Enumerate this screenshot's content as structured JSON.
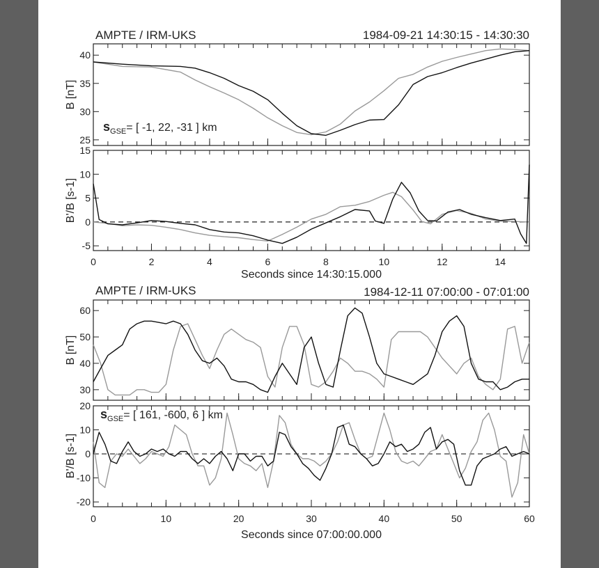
{
  "chart_data": [
    {
      "type": "line",
      "title_left": "AMPTE / IRM-UKS",
      "title_right": "1984-09-21 14:30:15 - 14:30:30",
      "xlabel": "Seconds since 14:30:15.000",
      "xlim": [
        0,
        15
      ],
      "xticks": [
        "0",
        "2",
        "4",
        "6",
        "8",
        "10",
        "12",
        "14"
      ],
      "panels": [
        {
          "ylabel": "B  [nT]",
          "ylim": [
            24,
            42
          ],
          "yticks": [
            "25",
            "30",
            "35",
            "40"
          ],
          "annotation": {
            "main": "s",
            "sub": "GSE",
            "text": "= [ -1, 22, -31 ] km"
          },
          "series": [
            {
              "color": "#111111",
              "x": [
                0,
                1,
                2,
                3,
                3.5,
                4,
                4.5,
                5,
                5.5,
                6,
                6.5,
                7,
                7.5,
                8,
                8.5,
                9,
                9.5,
                10,
                10.5,
                11,
                11.5,
                12,
                12.5,
                13,
                13.5,
                14,
                14.5,
                15
              ],
              "y": [
                38.8,
                38.4,
                38.1,
                38.0,
                37.7,
                36.9,
                35.9,
                34.6,
                33.6,
                32.1,
                29.7,
                27.5,
                26.1,
                25.8,
                26.7,
                27.7,
                28.5,
                28.6,
                31.2,
                34.8,
                36.2,
                36.9,
                37.8,
                38.6,
                39.3,
                40.0,
                40.6,
                40.8
              ]
            },
            {
              "color": "#999999",
              "x": [
                0,
                1,
                2,
                3,
                3.5,
                4,
                4.5,
                5,
                5.5,
                6,
                6.5,
                7,
                7.5,
                8,
                8.5,
                9,
                9.5,
                10,
                10.5,
                11,
                11.5,
                12,
                12.5,
                13,
                13.5,
                14,
                14.5,
                15
              ],
              "y": [
                38.8,
                38.0,
                37.9,
                37.0,
                35.6,
                34.4,
                33.3,
                32.1,
                30.6,
                28.9,
                27.5,
                26.3,
                25.9,
                26.4,
                27.8,
                30.1,
                31.7,
                33.7,
                35.9,
                36.6,
                37.9,
                38.9,
                39.6,
                40.2,
                40.8,
                41.1,
                41.0,
                40.8
              ]
            }
          ]
        },
        {
          "ylabel": "B'/B  [s-1]",
          "ylim": [
            -6,
            15
          ],
          "yticks": [
            "-5",
            "0",
            "5",
            "10",
            "15"
          ],
          "series": [
            {
              "color": "#111111",
              "x": [
                0,
                0.2,
                0.5,
                1,
                1.5,
                2,
                2.5,
                3,
                3.5,
                4,
                4.5,
                5,
                5.5,
                6,
                6.5,
                7,
                7.5,
                8,
                8.5,
                9,
                9.5,
                9.7,
                10,
                10.3,
                10.6,
                10.9,
                11.2,
                11.5,
                11.8,
                12.2,
                12.6,
                13,
                13.5,
                14,
                14.5,
                14.7,
                14.9,
                15
              ],
              "y": [
                8,
                0.5,
                -0.4,
                -0.6,
                -0.2,
                0.3,
                0.1,
                -0.3,
                -0.6,
                -1.6,
                -2.1,
                -2.3,
                -2.9,
                -3.8,
                -4.5,
                -3.2,
                -1.5,
                -0.2,
                1.1,
                2.6,
                2.3,
                0.2,
                -0.3,
                4.8,
                8.3,
                6.1,
                2.3,
                0.3,
                0.2,
                2.1,
                2.6,
                1.6,
                0.9,
                0.3,
                0.6,
                -2.5,
                -4.5,
                12
              ]
            },
            {
              "color": "#999999",
              "x": [
                0,
                0.5,
                1,
                1.5,
                2,
                2.5,
                3,
                3.5,
                4,
                4.5,
                5,
                5.5,
                6,
                6.5,
                7,
                7.5,
                8,
                8.5,
                9,
                9.5,
                10,
                10.3,
                10.6,
                11,
                11.3,
                11.6,
                12,
                12.5,
                13,
                13.5,
                14,
                14.5,
                15
              ],
              "y": [
                0,
                -0.3,
                -0.8,
                -0.6,
                -0.7,
                -1.1,
                -1.6,
                -2.3,
                -2.8,
                -3.1,
                -3.3,
                -3.7,
                -4.0,
                -2.6,
                -1.1,
                0.6,
                1.6,
                3.2,
                3.5,
                4.3,
                5.6,
                6.2,
                5.3,
                2.5,
                0.1,
                -0.4,
                1.6,
                2.4,
                1.8,
                0.6,
                0.2,
                0.1,
                0
              ]
            }
          ]
        }
      ]
    },
    {
      "type": "line",
      "title_left": "AMPTE / IRM-UKS",
      "title_right": "1984-12-11 07:00:00 - 07:01:00",
      "xlabel": "Seconds since 07:00:00.000",
      "xlim": [
        0,
        60
      ],
      "xticks": [
        "0",
        "10",
        "20",
        "30",
        "40",
        "50",
        "60"
      ],
      "panels": [
        {
          "ylabel": "B  [nT]",
          "ylim": [
            26,
            64
          ],
          "yticks": [
            "30",
            "40",
            "50",
            "60"
          ],
          "series": [
            {
              "color": "#111111",
              "x": [
                0,
                1,
                2,
                3,
                4,
                5,
                6,
                7,
                8,
                9,
                10,
                11,
                12,
                13,
                14,
                15,
                16,
                17,
                18,
                19,
                20,
                21,
                22,
                23,
                24,
                25,
                26,
                27,
                28,
                29,
                30,
                31,
                32,
                33,
                34,
                35,
                36,
                37,
                38,
                39,
                40,
                41,
                42,
                43,
                44,
                45,
                46,
                47,
                48,
                49,
                50,
                51,
                52,
                53,
                54,
                55,
                56,
                57,
                58,
                59,
                60
              ],
              "y": [
                33,
                38,
                43,
                45,
                47,
                53,
                55,
                56,
                56,
                55.5,
                55,
                56,
                55,
                51,
                45,
                41,
                40,
                42,
                39,
                34,
                33,
                33,
                32,
                30,
                29,
                35,
                40,
                36,
                32,
                46,
                50,
                40,
                32,
                31,
                45,
                58,
                61,
                59,
                50,
                40,
                36,
                35,
                34,
                33,
                32,
                34,
                36,
                43,
                52,
                56,
                58,
                54,
                40,
                34,
                33,
                33,
                30,
                31,
                33,
                34,
                34
              ]
            },
            {
              "color": "#999999",
              "x": [
                0,
                1,
                2,
                3,
                4,
                5,
                6,
                7,
                8,
                9,
                10,
                11,
                12,
                13,
                14,
                15,
                16,
                17,
                18,
                19,
                20,
                21,
                22,
                23,
                24,
                25,
                26,
                27,
                28,
                29,
                30,
                31,
                32,
                33,
                34,
                35,
                36,
                37,
                38,
                39,
                40,
                41,
                42,
                43,
                44,
                45,
                46,
                47,
                48,
                49,
                50,
                51,
                52,
                53,
                54,
                55,
                56,
                57,
                58,
                59,
                60
              ],
              "y": [
                47,
                40,
                30,
                28,
                28,
                28,
                30,
                30,
                29,
                29,
                32,
                45,
                54,
                55,
                49,
                43,
                38,
                45,
                51,
                53,
                51,
                49,
                48,
                46,
                35,
                31,
                46,
                54,
                54,
                47,
                32,
                31,
                33,
                37,
                42,
                40,
                37,
                37,
                36,
                34,
                31,
                49,
                52,
                52,
                52,
                52,
                50,
                46,
                42,
                39,
                36,
                40,
                42,
                35,
                32,
                30,
                34,
                53,
                54,
                40,
                48
              ]
            }
          ]
        },
        {
          "ylabel": "B'/B  [s-1]",
          "ylim": [
            -22,
            20
          ],
          "yticks": [
            "-20",
            "-10",
            "0",
            "10",
            "20"
          ],
          "annotation": {
            "main": "s",
            "sub": "GSE",
            "text": "= [ 161, -600, 6 ] km"
          },
          "series": [
            {
              "color": "#111111",
              "x": [
                0,
                0.8,
                1.6,
                2.4,
                3.2,
                4,
                4.8,
                5.6,
                6.4,
                7.2,
                8,
                8.8,
                9.6,
                10.4,
                11.2,
                12,
                12.8,
                13.6,
                14.4,
                15.2,
                16,
                16.8,
                17.6,
                18.4,
                19.2,
                20,
                20.8,
                21.6,
                22.4,
                23.2,
                24,
                24.8,
                25.6,
                26.4,
                27.2,
                28,
                28.8,
                29.6,
                30.4,
                31.2,
                32,
                32.8,
                33.6,
                34.4,
                35.2,
                36,
                36.8,
                37.6,
                38.4,
                39.2,
                40,
                40.8,
                41.6,
                42.4,
                43.2,
                44,
                44.8,
                45.6,
                46.4,
                47.2,
                48,
                48.8,
                49.6,
                50.4,
                51.2,
                52,
                52.8,
                53.6,
                54.4,
                55.2,
                56,
                56.8,
                57.6,
                58.4,
                59.2,
                60
              ],
              "y": [
                0,
                9,
                4,
                -3,
                -4,
                1,
                5,
                1,
                -1,
                0,
                2,
                1,
                2,
                0,
                -1,
                1,
                1,
                -2,
                -4,
                -2,
                -4,
                -1,
                1,
                -2,
                -7,
                0,
                0,
                -3,
                -1,
                -1,
                -5,
                -3,
                9,
                8,
                3,
                0,
                -4,
                -6,
                -9,
                -11,
                -6,
                0,
                11,
                12,
                4,
                3,
                0,
                -2,
                -5,
                -4,
                0,
                5,
                3,
                4,
                1,
                2,
                4,
                9,
                11,
                2,
                5,
                6,
                4,
                -7,
                -13,
                -13,
                -5,
                -2,
                -1,
                0,
                2,
                3,
                -1,
                0,
                1,
                0
              ]
            },
            {
              "color": "#999999",
              "x": [
                0,
                0.8,
                1.6,
                2.4,
                3.2,
                4,
                4.8,
                5.6,
                6.4,
                7.2,
                8,
                8.8,
                9.6,
                10.4,
                11.2,
                12,
                12.8,
                13.6,
                14.4,
                15.2,
                16,
                16.8,
                17.6,
                18.4,
                19.2,
                20,
                20.8,
                21.6,
                22.4,
                23.2,
                24,
                24.8,
                25.6,
                26.4,
                27.2,
                28,
                28.8,
                29.6,
                30.4,
                31.2,
                32,
                32.8,
                33.6,
                34.4,
                35.2,
                36,
                36.8,
                37.6,
                38.4,
                39.2,
                40,
                40.8,
                41.6,
                42.4,
                43.2,
                44,
                44.8,
                45.6,
                46.4,
                47.2,
                48,
                48.8,
                49.6,
                50.4,
                51.2,
                52,
                52.8,
                53.6,
                54.4,
                55.2,
                56,
                56.8,
                57.6,
                58.4,
                59.2,
                60
              ],
              "y": [
                5,
                -12,
                -14,
                -3,
                0,
                -1,
                2,
                -1,
                -4,
                -2,
                1,
                0,
                -1,
                3,
                12,
                10,
                8,
                0,
                -5,
                -5,
                -13,
                -10,
                -2,
                17,
                8,
                -2,
                -4,
                -5,
                -7,
                -4,
                -14,
                -3,
                16,
                13,
                4,
                0,
                -2,
                -2,
                -3,
                -5,
                -3,
                0,
                5,
                12,
                13,
                6,
                0,
                -2,
                -1,
                8,
                17,
                10,
                1,
                -3,
                -4,
                -3,
                -5,
                -2,
                1,
                2,
                8,
                2,
                -4,
                -10,
                -6,
                1,
                5,
                14,
                17,
                10,
                -1,
                -3,
                -18,
                -12,
                8,
                0
              ]
            }
          ]
        }
      ]
    }
  ]
}
